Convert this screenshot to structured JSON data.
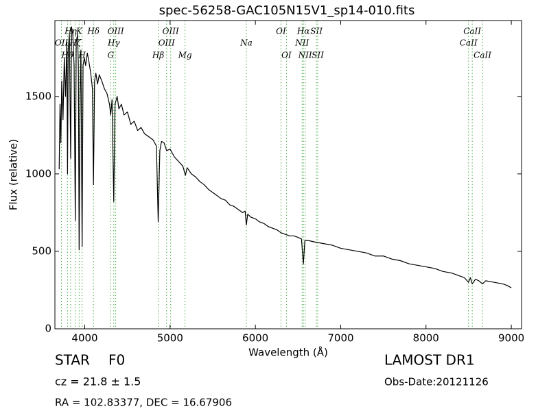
{
  "chart_data": {
    "type": "line",
    "title": "spec-56258-GAC105N15V1_sp14-010.fits",
    "xlabel": "Wavelength (Å)",
    "ylabel": "Flux (relative)",
    "xlim": [
      3650,
      9120
    ],
    "ylim": [
      0,
      1990
    ],
    "xticks": [
      4000,
      5000,
      6000,
      7000,
      8000,
      9000
    ],
    "yticks": [
      0,
      500,
      1000,
      1500
    ],
    "line_color": "#000000",
    "marker_color": "#44aa44",
    "x": [
      3700,
      3710,
      3720,
      3730,
      3745,
      3760,
      3775,
      3790,
      3798,
      3806,
      3820,
      3835,
      3845,
      3860,
      3875,
      3889,
      3900,
      3915,
      3925,
      3934,
      3945,
      3955,
      3969,
      3980,
      3995,
      4010,
      4030,
      4050,
      4070,
      4090,
      4102,
      4115,
      4130,
      4150,
      4170,
      4200,
      4230,
      4260,
      4290,
      4304,
      4320,
      4340,
      4355,
      4380,
      4400,
      4430,
      4460,
      4500,
      4540,
      4580,
      4620,
      4660,
      4700,
      4750,
      4800,
      4840,
      4861,
      4880,
      4900,
      4930,
      4960,
      5000,
      5050,
      5100,
      5150,
      5180,
      5200,
      5250,
      5300,
      5350,
      5400,
      5450,
      5500,
      5550,
      5600,
      5650,
      5700,
      5750,
      5800,
      5850,
      5880,
      5894,
      5910,
      5950,
      6000,
      6050,
      6100,
      6150,
      6200,
      6250,
      6300,
      6350,
      6400,
      6450,
      6500,
      6540,
      6563,
      6580,
      6620,
      6700,
      6800,
      6900,
      7000,
      7100,
      7200,
      7300,
      7400,
      7500,
      7600,
      7700,
      7800,
      7900,
      8000,
      8100,
      8200,
      8300,
      8400,
      8450,
      8498,
      8520,
      8542,
      8580,
      8620,
      8662,
      8700,
      8800,
      8900,
      8950,
      9000
    ],
    "series": [
      {
        "name": "flux",
        "color": "#000000",
        "values": [
          1030,
          1450,
          1200,
          1600,
          1350,
          1750,
          1500,
          1850,
          1000,
          1800,
          1900,
          1100,
          1950,
          1900,
          1700,
          700,
          1850,
          1900,
          1700,
          510,
          1500,
          1800,
          530,
          1700,
          1750,
          1700,
          1780,
          1720,
          1650,
          1550,
          930,
          1600,
          1650,
          1580,
          1640,
          1600,
          1550,
          1520,
          1450,
          1380,
          1480,
          820,
          1450,
          1500,
          1420,
          1450,
          1380,
          1400,
          1320,
          1340,
          1280,
          1300,
          1260,
          1240,
          1220,
          1180,
          690,
          1150,
          1210,
          1200,
          1150,
          1160,
          1110,
          1080,
          1050,
          990,
          1040,
          1000,
          980,
          950,
          930,
          900,
          880,
          860,
          840,
          830,
          800,
          790,
          770,
          750,
          760,
          670,
          740,
          720,
          710,
          690,
          680,
          660,
          650,
          640,
          620,
          610,
          600,
          600,
          590,
          580,
          420,
          570,
          570,
          560,
          550,
          540,
          520,
          510,
          500,
          490,
          470,
          470,
          450,
          440,
          420,
          410,
          400,
          390,
          370,
          360,
          340,
          330,
          300,
          330,
          290,
          320,
          310,
          290,
          310,
          300,
          290,
          280,
          265
        ]
      }
    ],
    "spectral_lines": [
      {
        "wavelength": 3727,
        "label": "OII"
      },
      {
        "wavelength": 3798,
        "label": "Hθ"
      },
      {
        "wavelength": 3835,
        "label": "Hη"
      },
      {
        "wavelength": 3889,
        "label": "Hζ"
      },
      {
        "wavelength": 3934,
        "label": "K"
      },
      {
        "wavelength": 3969,
        "label": "H"
      },
      {
        "wavelength": 4102,
        "label": "Hδ"
      },
      {
        "wavelength": 4304,
        "label": "G"
      },
      {
        "wavelength": 4340,
        "label": "Hγ"
      },
      {
        "wavelength": 4363,
        "label": "OIII"
      },
      {
        "wavelength": 4861,
        "label": "Hβ"
      },
      {
        "wavelength": 4959,
        "label": "OIII"
      },
      {
        "wavelength": 5007,
        "label": "OIII"
      },
      {
        "wavelength": 5175,
        "label": "Mg"
      },
      {
        "wavelength": 5894,
        "label": "Na"
      },
      {
        "wavelength": 6300,
        "label": "OI"
      },
      {
        "wavelength": 6364,
        "label": "OI"
      },
      {
        "wavelength": 6548,
        "label": "NII"
      },
      {
        "wavelength": 6563,
        "label": "Hα"
      },
      {
        "wavelength": 6583,
        "label": "NII"
      },
      {
        "wavelength": 6716,
        "label": "SII"
      },
      {
        "wavelength": 6731,
        "label": "SII"
      },
      {
        "wavelength": 8498,
        "label": "CaII"
      },
      {
        "wavelength": 8542,
        "label": "CaII"
      },
      {
        "wavelength": 8662,
        "label": "CaII"
      }
    ],
    "object_class": "STAR",
    "subclass": "F0",
    "redshift_text": "cz = 21.8 ± 1.5",
    "coords_text": "RA = 102.83377, DEC = 16.67906",
    "survey": "LAMOST DR1",
    "obs_date": "Obs-Date:20121126"
  }
}
